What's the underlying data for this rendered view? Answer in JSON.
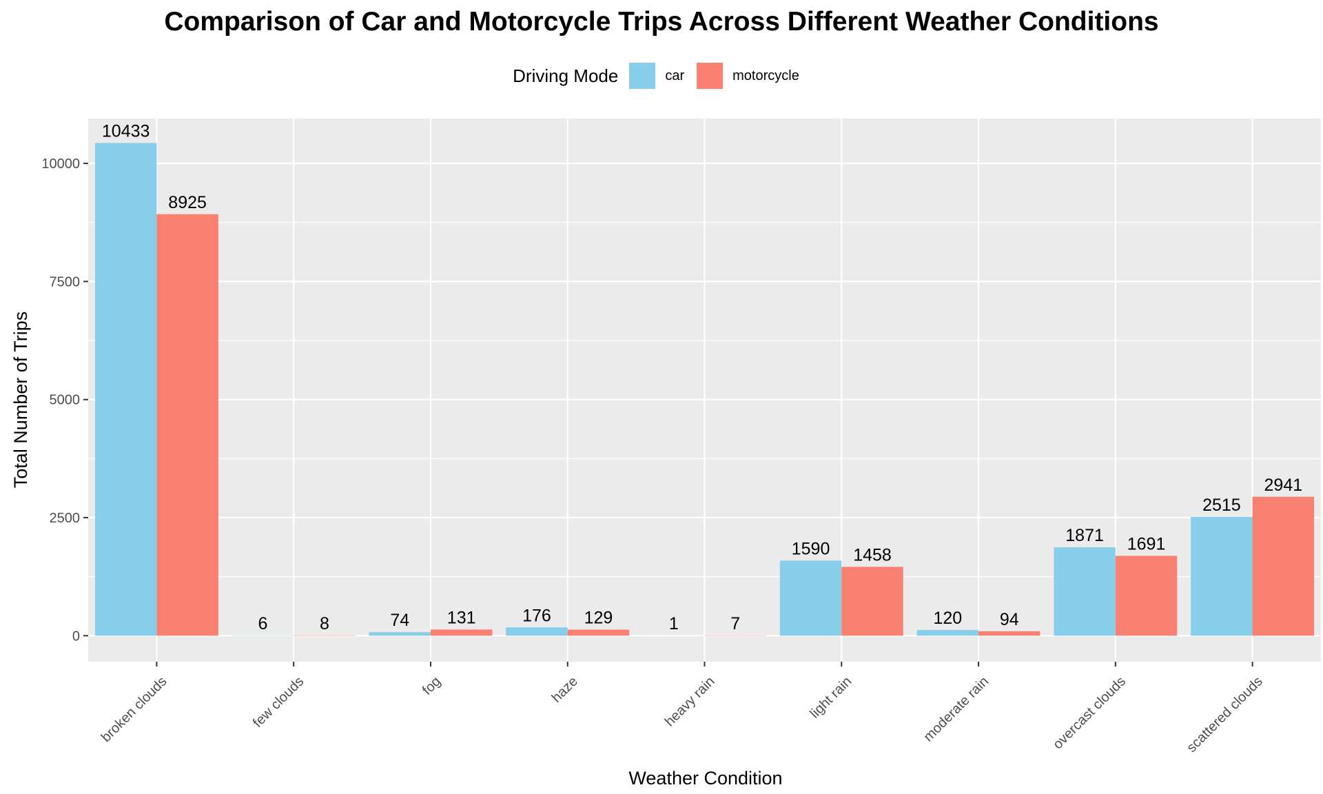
{
  "chart_data": {
    "type": "bar",
    "title": "Comparison of Car and Motorcycle Trips Across Different Weather Conditions",
    "xlabel": "Weather Condition",
    "ylabel": "Total Number of Trips",
    "legend_title": "Driving Mode",
    "legend_position": "top",
    "grid": true,
    "categories": [
      "broken clouds",
      "few clouds",
      "fog",
      "haze",
      "heavy rain",
      "light rain",
      "moderate rain",
      "overcast clouds",
      "scattered clouds"
    ],
    "series": [
      {
        "name": "car",
        "color": "#87CEEB",
        "values": [
          10433,
          6,
          74,
          176,
          1,
          1590,
          120,
          1871,
          2515
        ]
      },
      {
        "name": "motorcycle",
        "color": "#FA8072",
        "values": [
          8925,
          8,
          131,
          129,
          7,
          1458,
          94,
          1691,
          2941
        ]
      }
    ],
    "ylim": [
      -550,
      10950
    ],
    "yticks": [
      0,
      2500,
      5000,
      7500,
      10000
    ],
    "panel_background": "#EBEBEB",
    "gridline_color": "#FFFFFF"
  }
}
